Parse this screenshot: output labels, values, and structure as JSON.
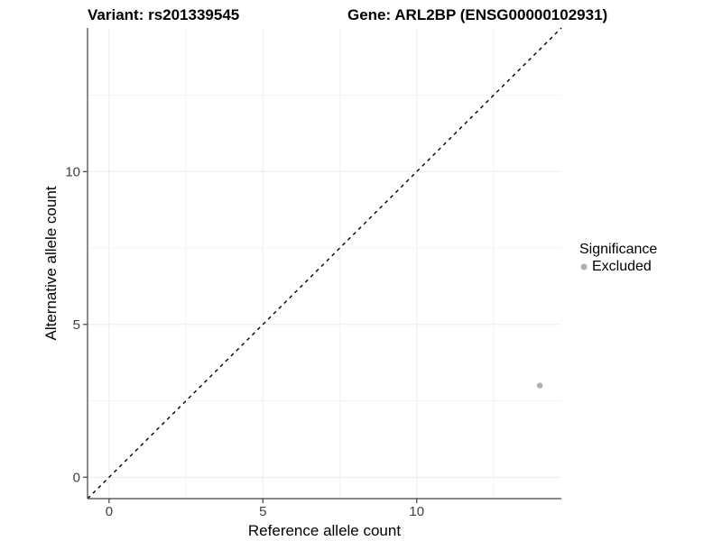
{
  "chart_data": {
    "type": "scatter",
    "title_left": "Variant: rs201339545",
    "title_right": "Gene: ARL2BP (ENSG00000102931)",
    "xlabel": "Reference allele count",
    "ylabel": "Alternative allele count",
    "xlim": [
      -0.7,
      14.7
    ],
    "ylim": [
      -0.7,
      14.7
    ],
    "x_major_ticks": [
      0,
      5,
      10
    ],
    "y_major_ticks": [
      0,
      5,
      10
    ],
    "x_minor_gridlines": [
      2.5,
      7.5,
      12.5
    ],
    "y_minor_gridlines": [
      2.5,
      7.5,
      12.5
    ],
    "grid": "major-and-minor",
    "identity_line": {
      "slope": 1,
      "intercept": 0,
      "style": "dashed",
      "color": "#000000"
    },
    "series": [
      {
        "name": "Excluded",
        "color": "#b0b0b0",
        "points": [
          {
            "x": 14,
            "y": 3
          }
        ]
      }
    ],
    "legend": {
      "title": "Significance",
      "position": "right",
      "entries": [
        {
          "label": "Excluded",
          "color": "#b0b0b0"
        }
      ]
    },
    "colors": {
      "axis_line": "#404040",
      "tick_label": "#404040",
      "grid_major": "#ececec",
      "grid_minor": "#f3f3f3",
      "point": "#b0b0b0"
    }
  }
}
